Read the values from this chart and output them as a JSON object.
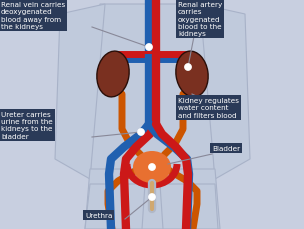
{
  "bg_color": "#c8cfe0",
  "body_color": "#c0cadc",
  "body_outline": "#a8b2c8",
  "kidney_color": "#7a3020",
  "bladder_color": "#e87030",
  "vein_color": "#2060b0",
  "artery_color": "#cc1818",
  "ureter_color": "#cc5500",
  "label_bg": "#2a3a58",
  "label_fg": "#ffffff",
  "dot_color": "#ffffff",
  "labels": {
    "renal_vein": "Renal vein carries\ndeoxygenated\nblood away from\nthe kidneys",
    "renal_artery": "Renal artery\ncarries\noxygenated\nblood to the\nkidneys",
    "kidney_func": "Kidney regulates\nwater content\nand filters blood",
    "ureter": "Ureter carries\nurine from the\nkidneys to the\nbladder",
    "bladder": "Bladder",
    "urethra": "Urethra"
  }
}
